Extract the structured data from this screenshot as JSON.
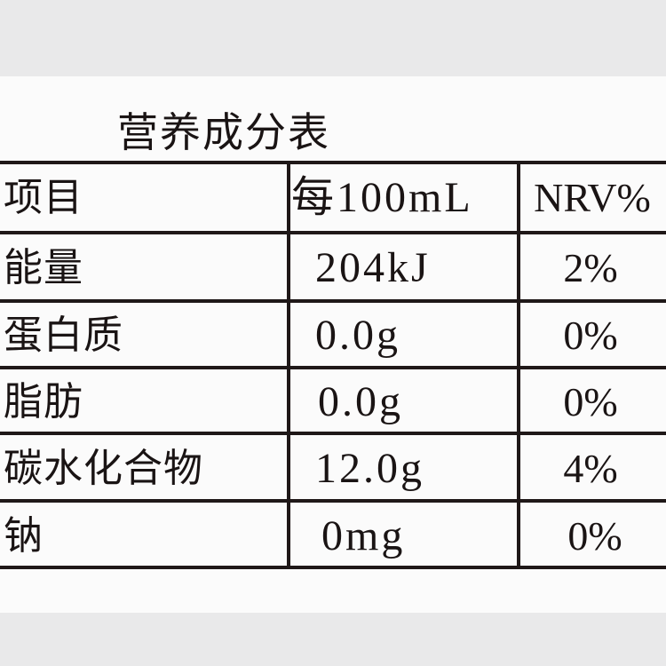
{
  "title": "营养成分表",
  "header": {
    "item": "项目",
    "per": "每100mL",
    "nrv": "NRV%"
  },
  "rows": [
    {
      "item": "能量",
      "value": "204kJ",
      "nrv": "2%"
    },
    {
      "item": "蛋白质",
      "value": "0.0g",
      "nrv": "0%"
    },
    {
      "item": "脂肪",
      "value": "0.0g",
      "nrv": "0%"
    },
    {
      "item": "碳水化合物",
      "value": "12.0g",
      "nrv": "4%"
    },
    {
      "item": "钠",
      "value": "0mg",
      "nrv": "0%"
    }
  ]
}
